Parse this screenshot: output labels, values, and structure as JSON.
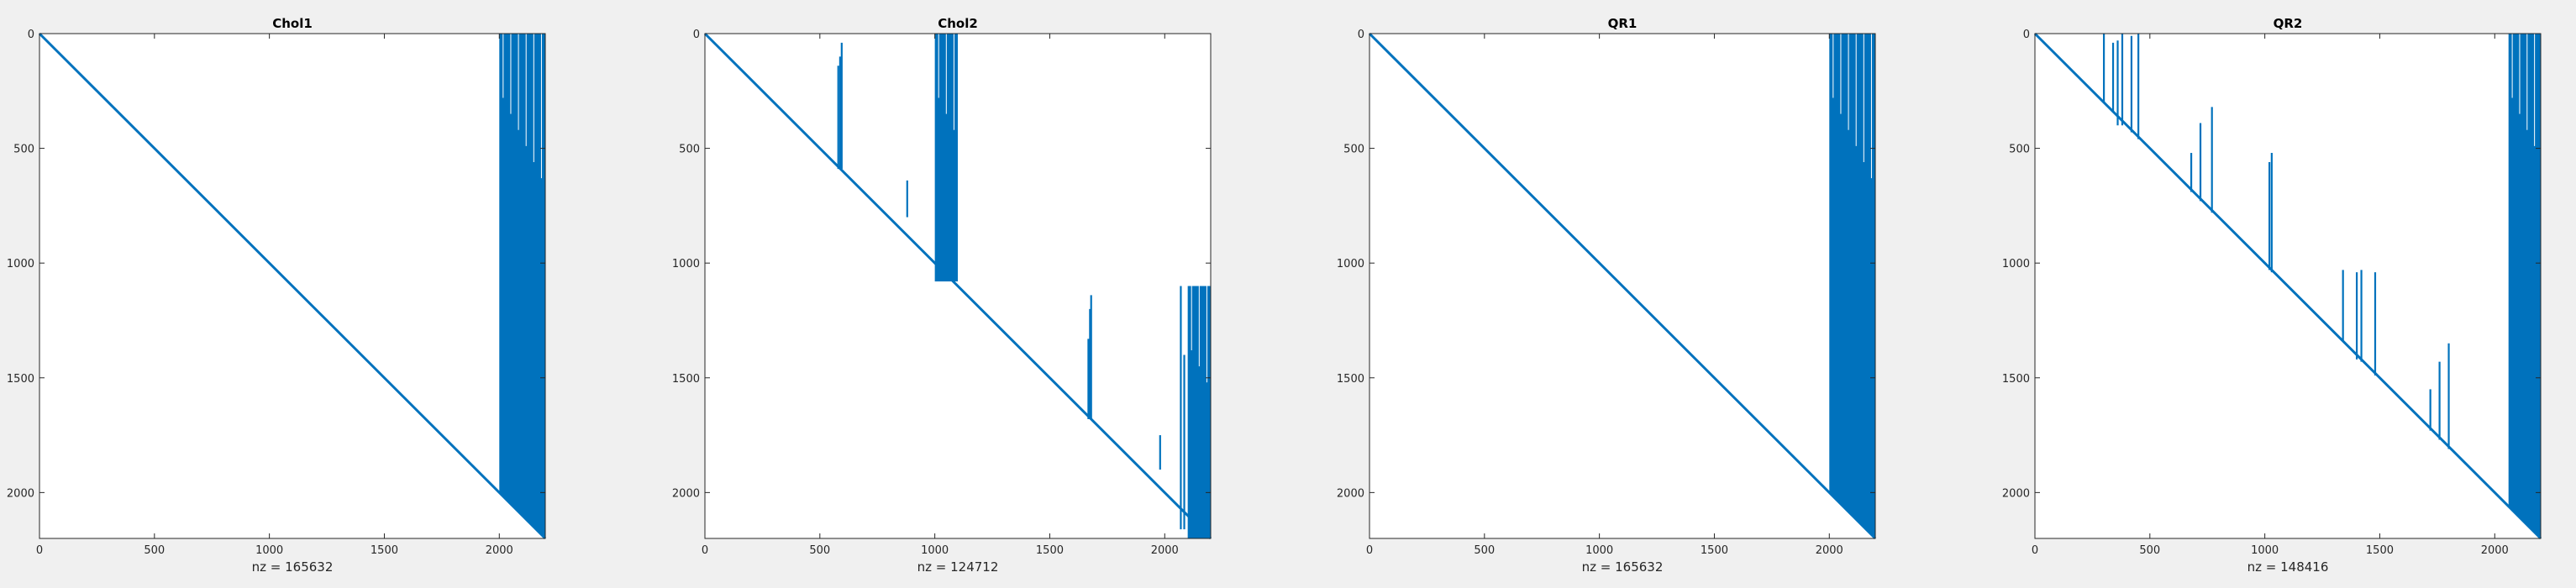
{
  "chart_data": [
    {
      "type": "scatter",
      "title": "Chol1",
      "xlabel": "nz = 165632",
      "xlim": [
        0,
        2200
      ],
      "ylim": [
        0,
        2200
      ],
      "y_reversed": true,
      "xticks": [
        0,
        500,
        1000,
        1500,
        2000
      ],
      "yticks": [
        0,
        500,
        1000,
        1500,
        2000
      ],
      "color": "#0072BD",
      "diagonal": [
        [
          0,
          0
        ],
        [
          2200,
          2200
        ]
      ],
      "dense_blocks": [
        {
          "x": [
            2000,
            2200
          ],
          "y": [
            0,
            2200
          ],
          "top": 0,
          "bottom_follows_diagonal": true
        }
      ],
      "columns": []
    },
    {
      "type": "scatter",
      "title": "Chol2",
      "xlabel": "nz = 124712",
      "xlim": [
        0,
        2200
      ],
      "ylim": [
        0,
        2200
      ],
      "y_reversed": true,
      "xticks": [
        0,
        500,
        1000,
        1500,
        2000
      ],
      "yticks": [
        0,
        500,
        1000,
        1500,
        2000
      ],
      "color": "#0072BD",
      "diagonal": [
        [
          0,
          0
        ],
        [
          2200,
          2200
        ]
      ],
      "dense_blocks": [
        {
          "x": [
            1000,
            1100
          ],
          "y": [
            0,
            1080
          ]
        },
        {
          "x": [
            2100,
            2200
          ],
          "y": [
            1100,
            2200
          ]
        }
      ],
      "columns": [
        {
          "x": 580,
          "y": [
            140,
            590
          ]
        },
        {
          "x": 588,
          "y": [
            100,
            590
          ]
        },
        {
          "x": 595,
          "y": [
            40,
            590
          ]
        },
        {
          "x": 880,
          "y": [
            640,
            800
          ]
        },
        {
          "x": 1668,
          "y": [
            1330,
            1680
          ]
        },
        {
          "x": 1675,
          "y": [
            1200,
            1680
          ]
        },
        {
          "x": 1680,
          "y": [
            1140,
            1680
          ]
        },
        {
          "x": 1980,
          "y": [
            1750,
            1900
          ]
        },
        {
          "x": 2070,
          "y": [
            1100,
            2160
          ]
        },
        {
          "x": 2085,
          "y": [
            1400,
            2160
          ]
        }
      ]
    },
    {
      "type": "scatter",
      "title": "QR1",
      "xlabel": "nz = 165632",
      "xlim": [
        0,
        2200
      ],
      "ylim": [
        0,
        2200
      ],
      "y_reversed": true,
      "xticks": [
        0,
        500,
        1000,
        1500,
        2000
      ],
      "yticks": [
        0,
        500,
        1000,
        1500,
        2000
      ],
      "color": "#0072BD",
      "diagonal": [
        [
          0,
          0
        ],
        [
          2200,
          2200
        ]
      ],
      "dense_blocks": [
        {
          "x": [
            2000,
            2200
          ],
          "y": [
            0,
            2200
          ],
          "top": 0,
          "bottom_follows_diagonal": true
        }
      ],
      "columns": []
    },
    {
      "type": "scatter",
      "title": "QR2",
      "xlabel": "nz = 148416",
      "xlim": [
        0,
        2200
      ],
      "ylim": [
        0,
        2200
      ],
      "y_reversed": true,
      "xticks": [
        0,
        500,
        1000,
        1500,
        2000
      ],
      "yticks": [
        0,
        500,
        1000,
        1500,
        2000
      ],
      "color": "#0072BD",
      "diagonal": [
        [
          0,
          0
        ],
        [
          2200,
          2200
        ]
      ],
      "dense_blocks": [
        {
          "x": [
            2060,
            2200
          ],
          "y": [
            0,
            2200
          ],
          "top": 0,
          "bottom_follows_diagonal": true
        }
      ],
      "columns": [
        {
          "x": 300,
          "y": [
            0,
            300
          ]
        },
        {
          "x": 340,
          "y": [
            40,
            340
          ]
        },
        {
          "x": 360,
          "y": [
            30,
            400
          ]
        },
        {
          "x": 380,
          "y": [
            0,
            400
          ]
        },
        {
          "x": 420,
          "y": [
            10,
            430
          ]
        },
        {
          "x": 450,
          "y": [
            0,
            460
          ]
        },
        {
          "x": 680,
          "y": [
            520,
            690
          ]
        },
        {
          "x": 720,
          "y": [
            390,
            730
          ]
        },
        {
          "x": 770,
          "y": [
            320,
            780
          ]
        },
        {
          "x": 1020,
          "y": [
            560,
            1030
          ]
        },
        {
          "x": 1030,
          "y": [
            520,
            1040
          ]
        },
        {
          "x": 1340,
          "y": [
            1030,
            1340
          ]
        },
        {
          "x": 1400,
          "y": [
            1040,
            1420
          ]
        },
        {
          "x": 1420,
          "y": [
            1030,
            1430
          ]
        },
        {
          "x": 1480,
          "y": [
            1040,
            1490
          ]
        },
        {
          "x": 1720,
          "y": [
            1550,
            1730
          ]
        },
        {
          "x": 1760,
          "y": [
            1430,
            1770
          ]
        },
        {
          "x": 1800,
          "y": [
            1350,
            1810
          ]
        }
      ]
    }
  ]
}
